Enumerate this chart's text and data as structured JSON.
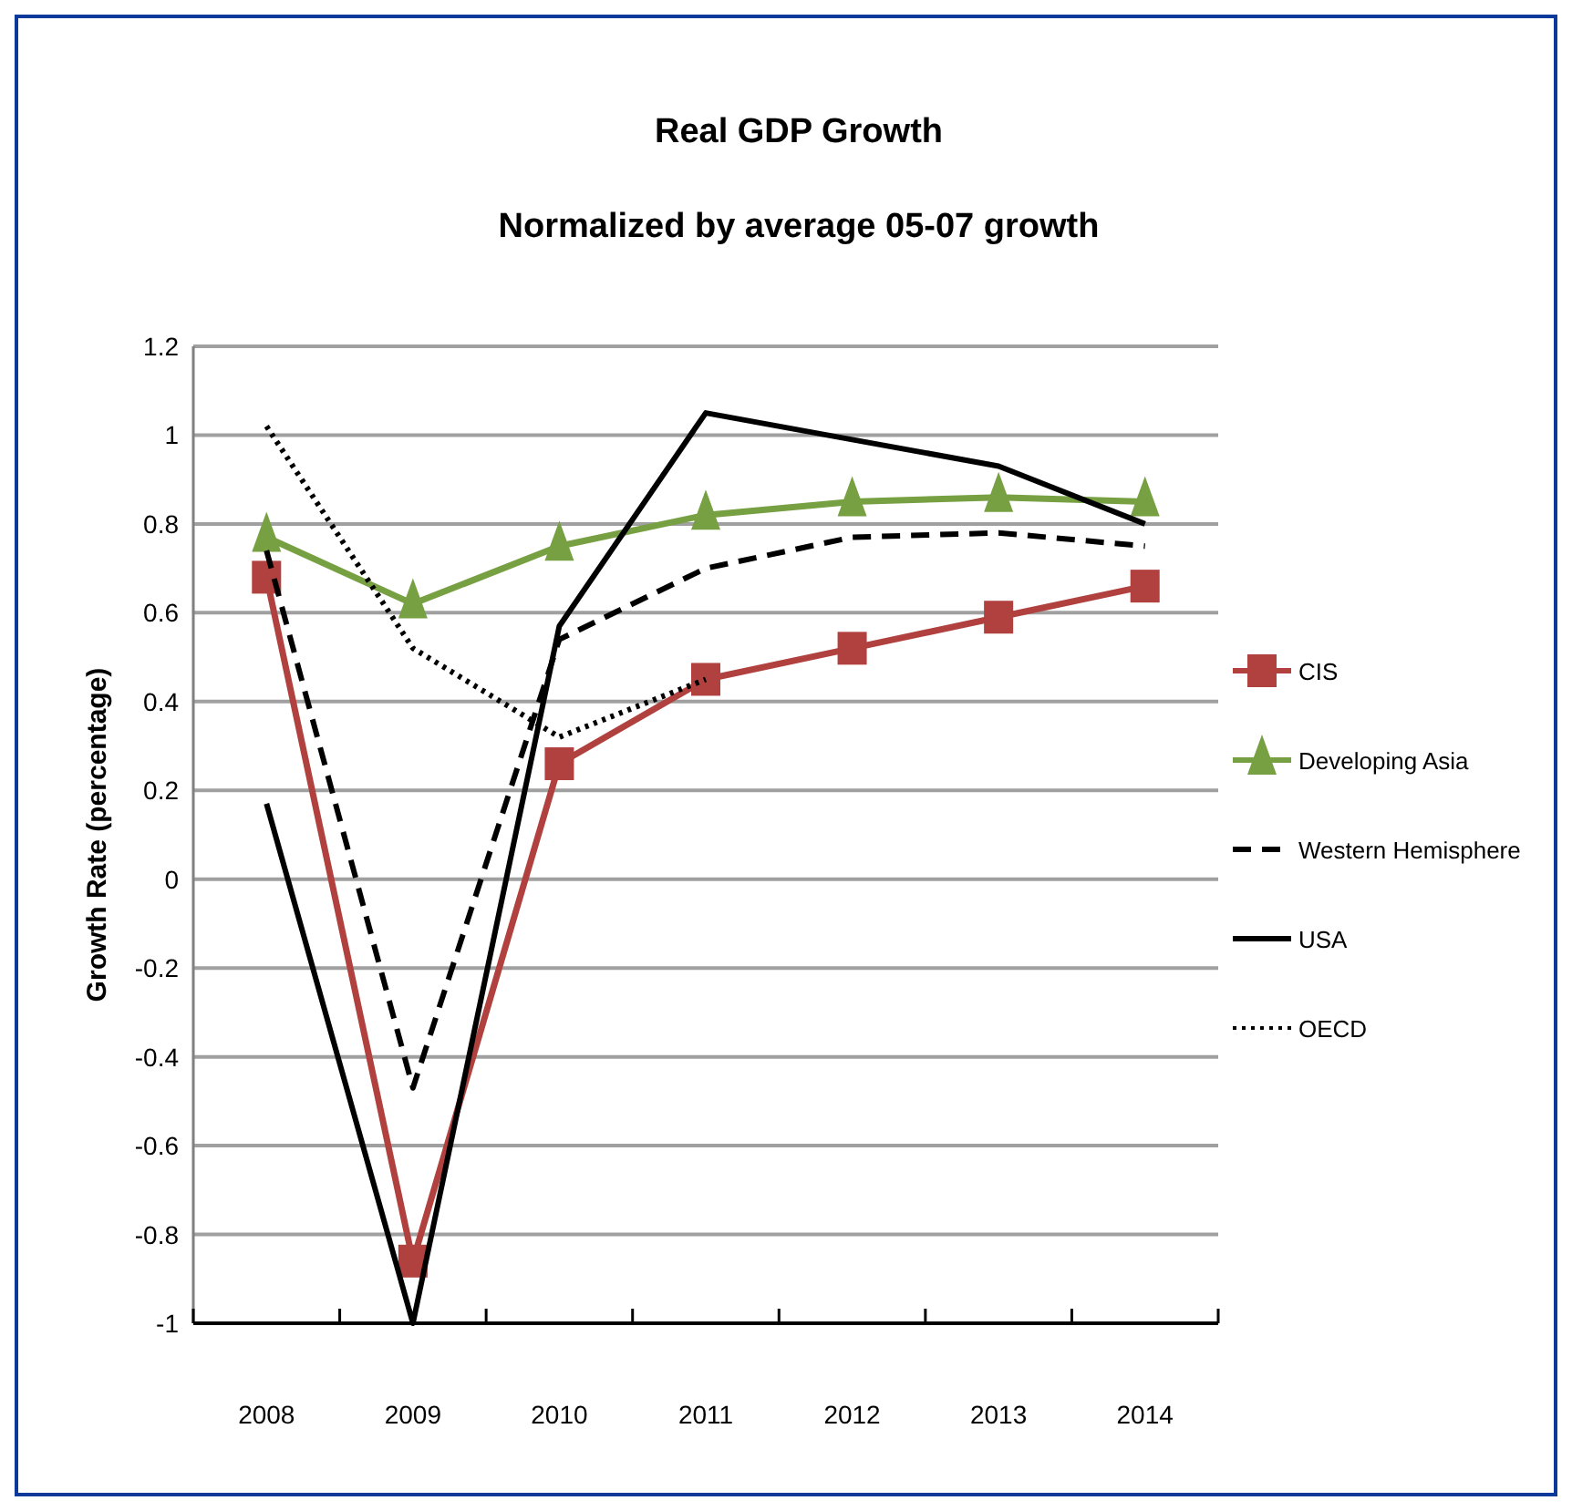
{
  "chart_data": {
    "type": "line",
    "title": "Real GDP Growth",
    "subtitle": "Normalized by average 05-07 growth",
    "ylabel": "Growth Rate  (percentage)",
    "categories": [
      "2008",
      "2009",
      "2010",
      "2011",
      "2012",
      "2013",
      "2014"
    ],
    "series": [
      {
        "name": "CIS",
        "color": "#b0413e",
        "marker": "square",
        "line_style": "solid",
        "values": [
          0.68,
          -0.86,
          0.26,
          0.45,
          0.52,
          0.59,
          0.66
        ]
      },
      {
        "name": "Developing Asia",
        "color": "#77a043",
        "marker": "triangle",
        "line_style": "solid",
        "values": [
          0.77,
          0.62,
          0.75,
          0.82,
          0.85,
          0.86,
          0.85
        ]
      },
      {
        "name": "Western Hemisphere",
        "color": "#000000",
        "marker": "none",
        "line_style": "dashed",
        "values": [
          0.74,
          -0.47,
          0.54,
          0.7,
          0.77,
          0.78,
          0.75
        ]
      },
      {
        "name": "USA",
        "color": "#000000",
        "marker": "none",
        "line_style": "solid",
        "values": [
          0.17,
          -1.0,
          0.57,
          1.05,
          0.99,
          0.93,
          0.8
        ]
      },
      {
        "name": "OECD",
        "color": "#000000",
        "marker": "none",
        "line_style": "dotted",
        "values": [
          1.02,
          0.52,
          0.32,
          0.45,
          null,
          null,
          null
        ]
      }
    ],
    "ylim": [
      -1,
      1.2
    ],
    "yticks": [
      -1,
      -0.8,
      -0.6,
      -0.4,
      -0.2,
      0,
      0.2,
      0.4,
      0.6,
      0.8,
      1,
      1.2
    ],
    "grid": "y",
    "legend": "right"
  }
}
